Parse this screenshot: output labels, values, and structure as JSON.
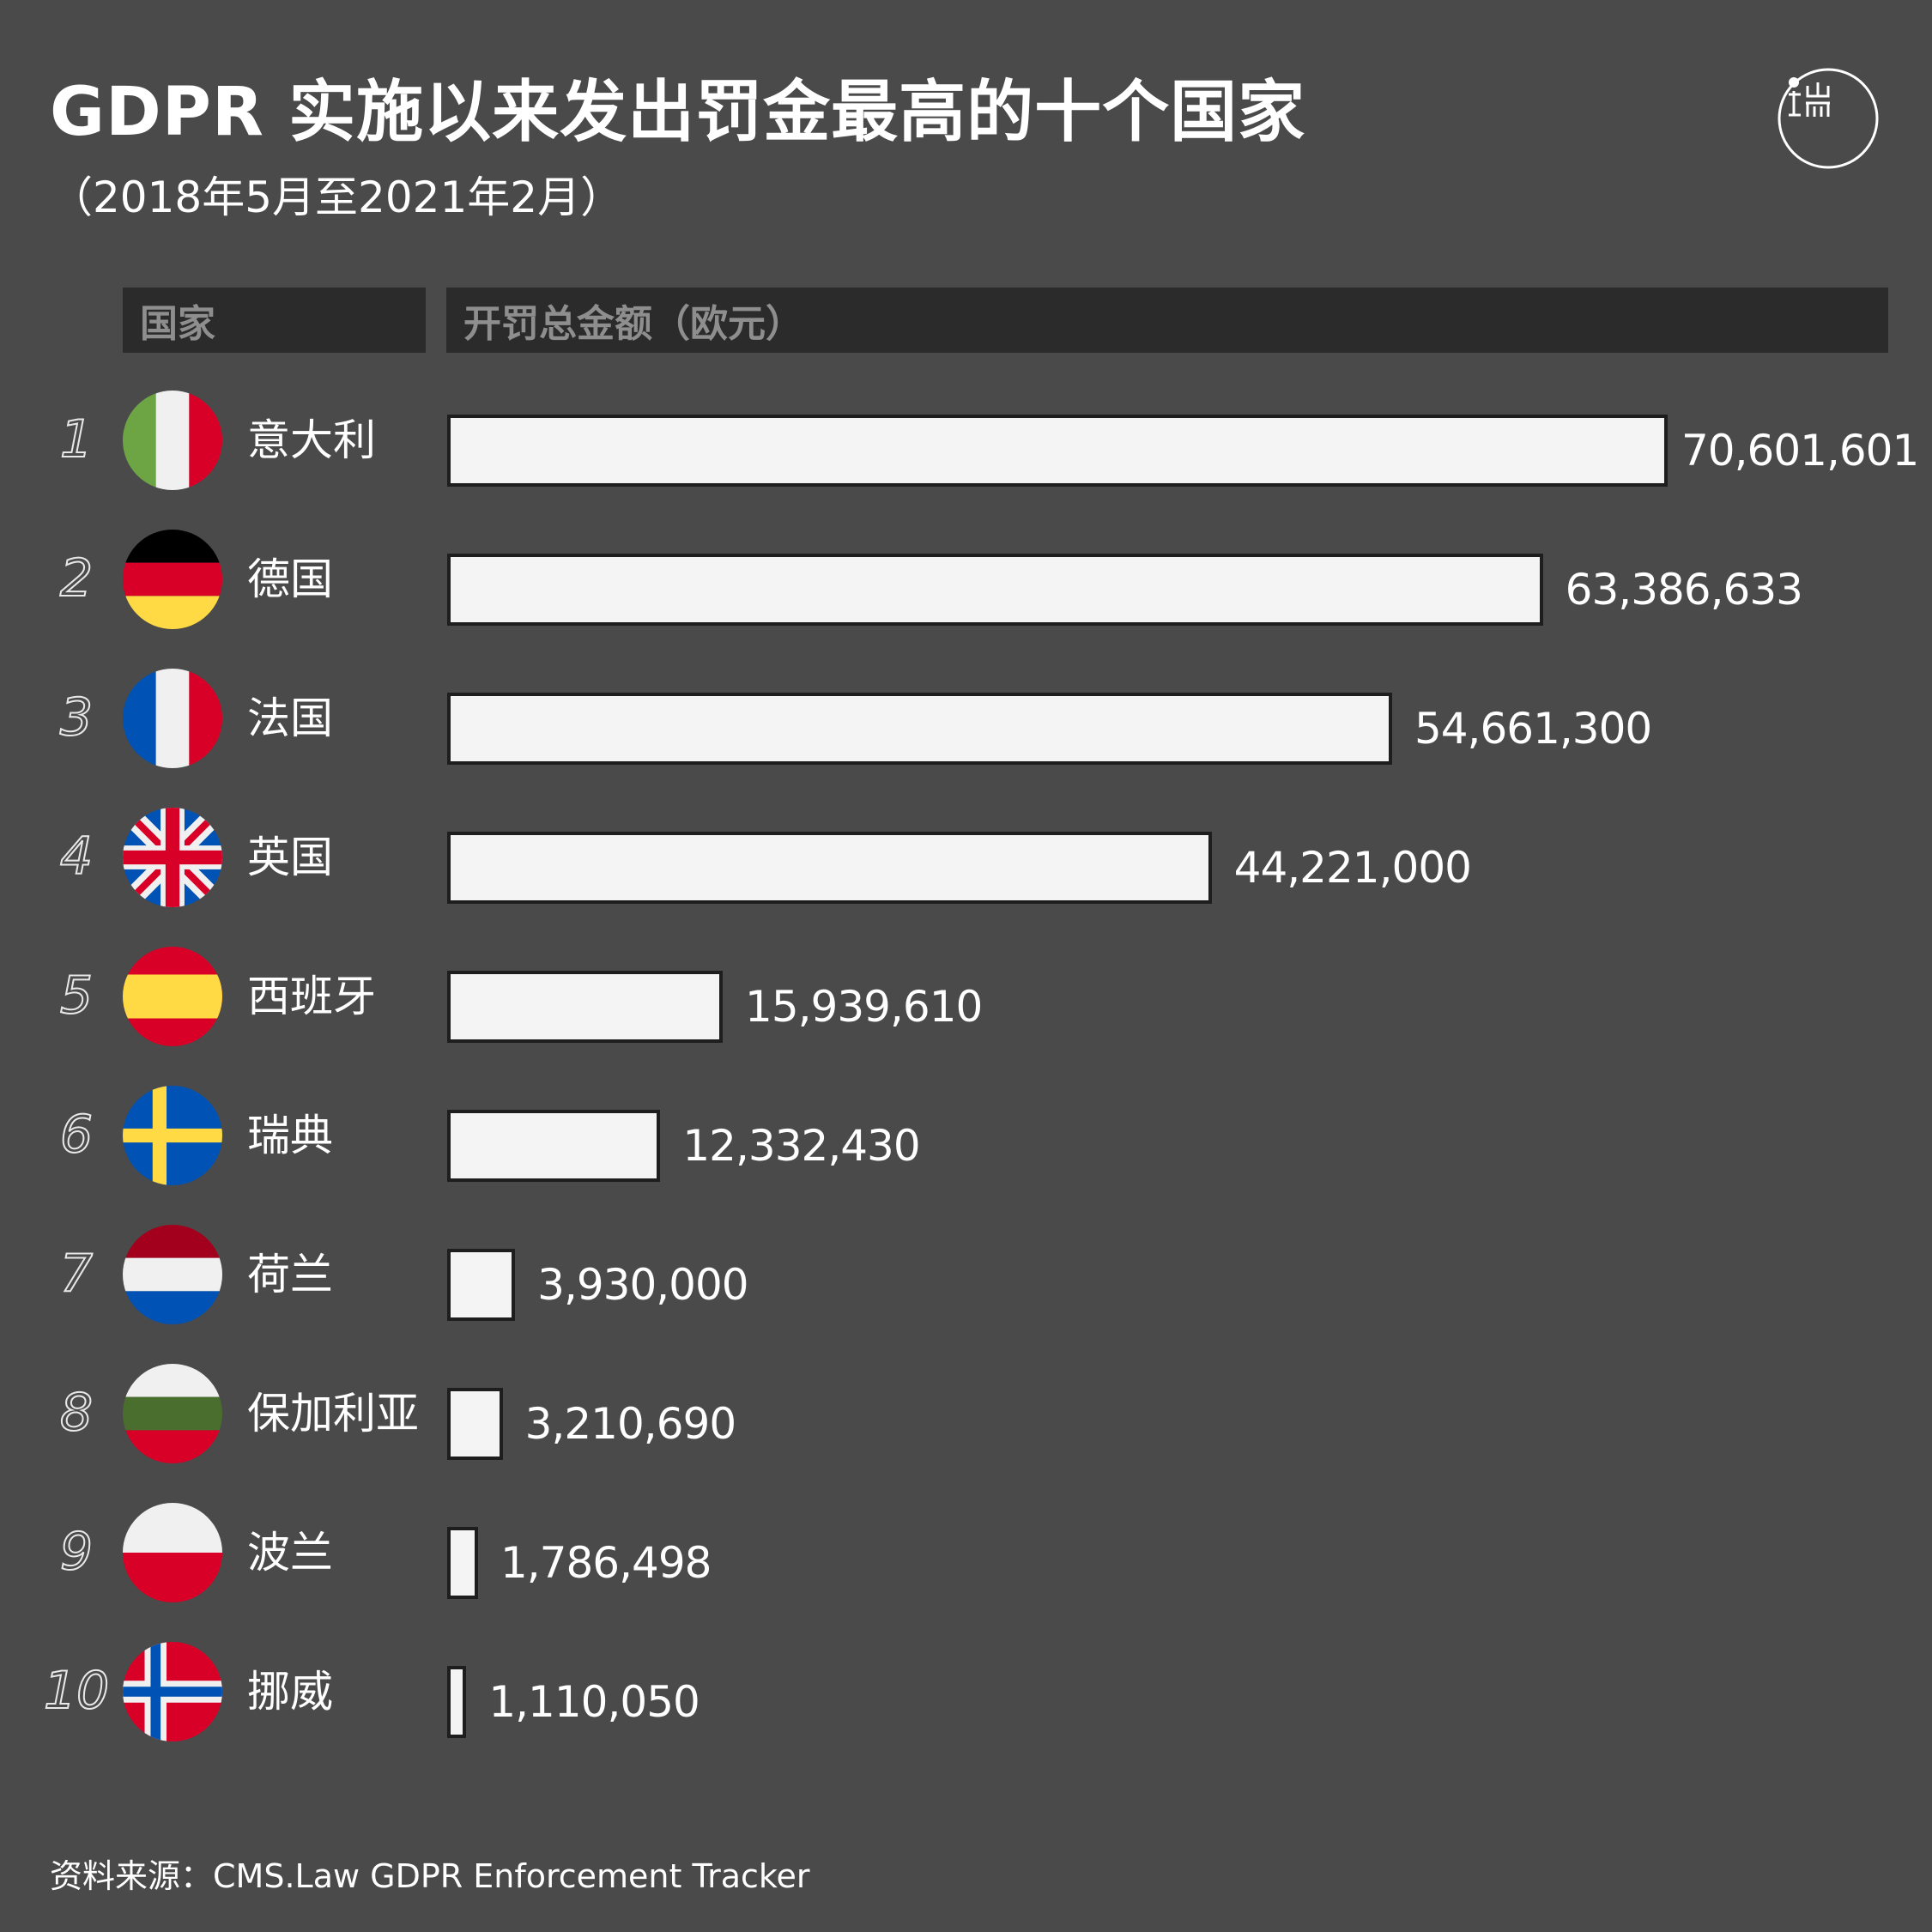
{
  "title": "GDPR 实施以来发出罚金最高的十个国家",
  "subtitle": "（2018年5月至2021年2月）",
  "logo": {
    "icon": "initium-logo-icon"
  },
  "header": {
    "country_label": "国家",
    "amount_label": "开罚总金额（欧元）"
  },
  "source": "资料来源：CMS.Law GDPR Enforcement Tracker",
  "chart_data": {
    "type": "bar",
    "orientation": "horizontal",
    "title": "GDPR 实施以来发出罚金最高的十个国家",
    "subtitle": "（2018年5月至2021年2月）",
    "xlabel": "开罚总金额（欧元）",
    "ylabel": "国家",
    "grid": false,
    "categories": [
      "意大利",
      "德国",
      "法国",
      "英国",
      "西班牙",
      "瑞典",
      "荷兰",
      "保加利亚",
      "波兰",
      "挪威"
    ],
    "values": [
      70601601,
      63386633,
      54661300,
      44221000,
      15939610,
      12332430,
      3930000,
      3210690,
      1786498,
      1110050
    ],
    "value_labels": [
      "70,601,601",
      "63,386,633",
      "54,661,300",
      "44,221,000",
      "15,939,610",
      "12,332,430",
      "3,930,000",
      "3,210,690",
      "1,786,498",
      "1,110,050"
    ],
    "ranks": [
      "1",
      "2",
      "3",
      "4",
      "5",
      "6",
      "7",
      "8",
      "9",
      "10"
    ],
    "flags": [
      "italy-flag-icon",
      "germany-flag-icon",
      "france-flag-icon",
      "uk-flag-icon",
      "spain-flag-icon",
      "sweden-flag-icon",
      "netherlands-flag-icon",
      "bulgaria-flag-icon",
      "poland-flag-icon",
      "norway-flag-icon"
    ],
    "colors": {
      "background": "#4a4a4a",
      "bar_fill": "#f4f4f4",
      "bar_border": "#1e1e1e",
      "header_bg": "#2b2b2b",
      "header_text": "#8e8e8e"
    }
  }
}
